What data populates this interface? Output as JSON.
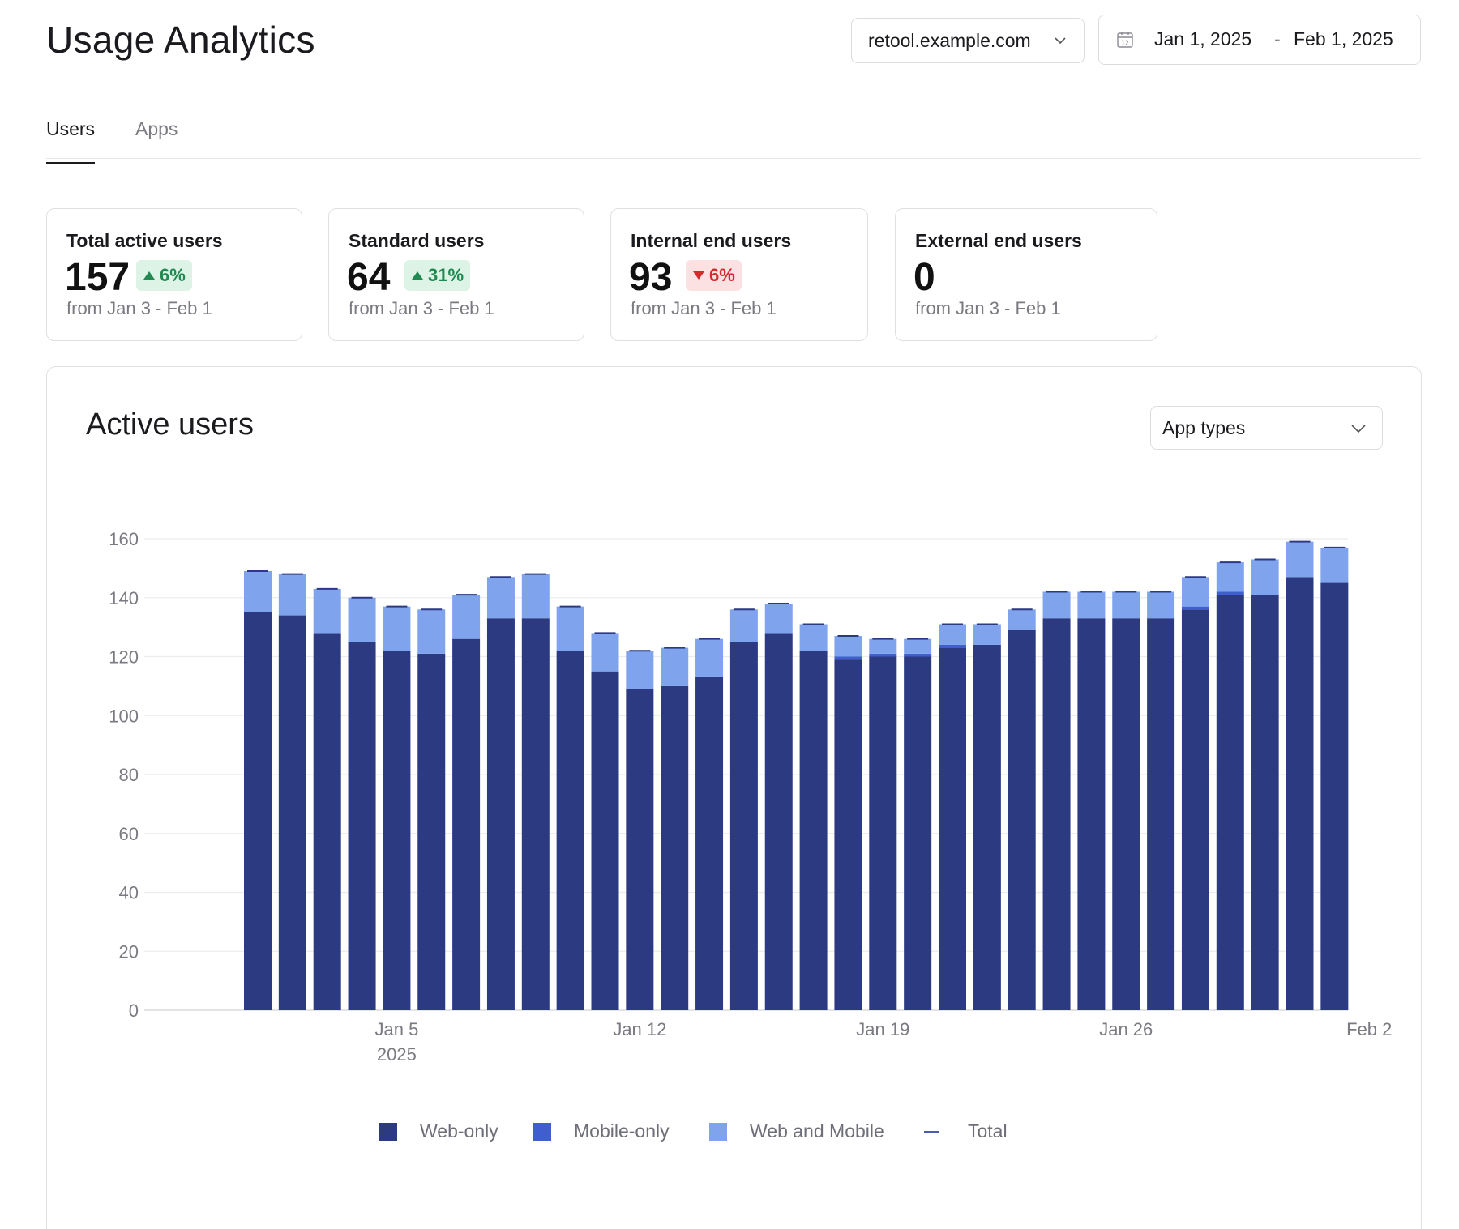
{
  "header": {
    "title": "Usage Analytics",
    "domain_select": "retool.example.com",
    "date_start": "Jan 1, 2025",
    "date_separator": "-",
    "date_end": "Feb 1, 2025"
  },
  "tabs": [
    {
      "label": "Users",
      "active": true
    },
    {
      "label": "Apps",
      "active": false
    }
  ],
  "stats": [
    {
      "label": "Total active users",
      "value": "157",
      "change": "6%",
      "direction": "up",
      "sub": "from Jan 3 - Feb 1"
    },
    {
      "label": "Standard users",
      "value": "64",
      "change": "31%",
      "direction": "up",
      "sub": "from Jan 3 - Feb 1"
    },
    {
      "label": "Internal end users",
      "value": "93",
      "change": "6%",
      "direction": "down",
      "sub": "from Jan 3 - Feb 1"
    },
    {
      "label": "External end users",
      "value": "0",
      "change": "",
      "direction": "",
      "sub": "from Jan 3 - Feb 1"
    }
  ],
  "chart_panel": {
    "title": "Active users",
    "filter_select": "App types"
  },
  "colors": {
    "web_only": "#2c3a82",
    "mobile_only": "#3f5fd0",
    "web_and_mobile": "#7fa3ec",
    "total": "#2c3a82",
    "badge_up": "#1f8a52",
    "badge_down": "#d42a2a"
  },
  "chart_data": {
    "type": "bar",
    "stacked": true,
    "ylim": [
      0,
      160
    ],
    "yticks": [
      0,
      20,
      40,
      60,
      80,
      100,
      120,
      140,
      160
    ],
    "xticks": [
      {
        "label": "Jan 5",
        "sublabel": "2025",
        "index": 4
      },
      {
        "label": "Jan 12",
        "sublabel": "",
        "index": 11
      },
      {
        "label": "Jan 19",
        "sublabel": "",
        "index": 18
      },
      {
        "label": "Jan 26",
        "sublabel": "",
        "index": 25
      },
      {
        "label": "Feb 2",
        "sublabel": "",
        "index": 32
      }
    ],
    "categories": [
      "Jan 1",
      "Jan 2",
      "Jan 3",
      "Jan 4",
      "Jan 5",
      "Jan 6",
      "Jan 7",
      "Jan 8",
      "Jan 9",
      "Jan 10",
      "Jan 11",
      "Jan 12",
      "Jan 13",
      "Jan 14",
      "Jan 15",
      "Jan 16",
      "Jan 17",
      "Jan 18",
      "Jan 19",
      "Jan 20",
      "Jan 21",
      "Jan 22",
      "Jan 23",
      "Jan 24",
      "Jan 25",
      "Jan 26",
      "Jan 27",
      "Jan 28",
      "Jan 29",
      "Jan 30",
      "Jan 31",
      "Feb 1"
    ],
    "series": [
      {
        "name": "Web-only",
        "values": [
          135,
          134,
          128,
          125,
          122,
          121,
          126,
          133,
          133,
          122,
          115,
          109,
          110,
          113,
          125,
          128,
          122,
          119,
          120,
          120,
          123,
          124,
          129,
          133,
          133,
          133,
          133,
          136,
          141,
          141,
          147,
          145
        ]
      },
      {
        "name": "Mobile-only",
        "values": [
          0,
          0,
          0,
          0,
          0,
          0,
          0,
          0,
          0,
          0,
          0,
          0,
          0,
          0,
          0,
          0,
          0,
          1,
          1,
          1,
          1,
          0,
          0,
          0,
          0,
          0,
          0,
          1,
          1,
          0,
          0,
          0
        ]
      },
      {
        "name": "Web and Mobile",
        "values": [
          14,
          14,
          15,
          15,
          15,
          15,
          15,
          14,
          15,
          15,
          13,
          13,
          13,
          13,
          11,
          10,
          9,
          7,
          5,
          5,
          7,
          7,
          7,
          9,
          9,
          9,
          9,
          10,
          10,
          12,
          12,
          12
        ]
      },
      {
        "name": "Total",
        "values": [
          149,
          148,
          143,
          140,
          137,
          136,
          141,
          147,
          148,
          137,
          128,
          122,
          123,
          126,
          136,
          138,
          131,
          127,
          126,
          126,
          131,
          131,
          136,
          142,
          142,
          142,
          142,
          147,
          152,
          153,
          159,
          157
        ]
      }
    ]
  }
}
